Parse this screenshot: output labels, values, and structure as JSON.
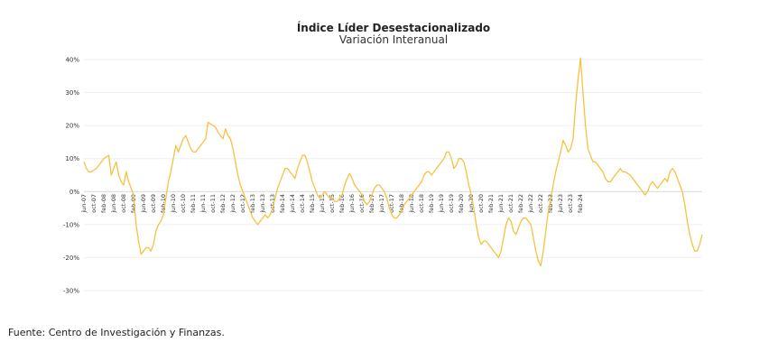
{
  "chart_data": {
    "type": "line",
    "title": "Índice Líder Desestacionalizado",
    "subtitle": "Variación Interanual",
    "xlabel": "",
    "ylabel": "",
    "ylim": [
      -30,
      40
    ],
    "yticks": [
      40,
      30,
      20,
      10,
      0,
      -10,
      -20,
      -30
    ],
    "ytick_labels": [
      "40%",
      "30%",
      "20%",
      "10%",
      "0%",
      "-10%",
      "-20%",
      "-30%"
    ],
    "grid": true,
    "x_start": "2007-06",
    "xtick_labels": [
      "jun-07",
      "oct-07",
      "feb-08",
      "jun-08",
      "oct-08",
      "feb-09",
      "jun-09",
      "oct-09",
      "feb-10",
      "jun-10",
      "oct-10",
      "feb-11",
      "jun-11",
      "oct-11",
      "feb-12",
      "jun-12",
      "oct-12",
      "feb-13",
      "jun-13",
      "oct-13",
      "feb-14",
      "jun-14",
      "oct-14",
      "feb-15",
      "jun-15",
      "oct-15",
      "feb-16",
      "jun-16",
      "oct-16",
      "feb-17",
      "jun-17",
      "oct-17",
      "feb-18",
      "jun-18",
      "oct-18",
      "feb-19",
      "jun-19",
      "oct-19",
      "feb-20",
      "jun-20",
      "oct-20",
      "feb-21",
      "jun-21",
      "oct-21",
      "feb-22",
      "jun-22",
      "oct-22",
      "feb-23",
      "jun-23",
      "oct-23",
      "feb-24"
    ],
    "series": [
      {
        "color": "#f5c242",
        "values": [
          9,
          7,
          6,
          6,
          6.5,
          7,
          8,
          9,
          10,
          10.5,
          11,
          5,
          7,
          9,
          5,
          3,
          2,
          6,
          3,
          1,
          -1,
          -10,
          -15,
          -19,
          -18,
          -17,
          -17,
          -18,
          -16,
          -12,
          -10,
          -9,
          -7,
          -2,
          3,
          6,
          10,
          14,
          12,
          14,
          16,
          17,
          15,
          13,
          12,
          12,
          13,
          14,
          15,
          16,
          21,
          20.5,
          20,
          19.5,
          18,
          17,
          16,
          19,
          17,
          16,
          13,
          9,
          5,
          2,
          0,
          -2,
          -4,
          -6,
          -8,
          -9,
          -10,
          -9,
          -8,
          -7,
          -8,
          -7,
          -5,
          -2,
          1,
          3,
          5,
          7,
          7,
          6,
          5,
          4,
          7,
          9,
          11,
          11,
          9,
          6,
          3,
          1,
          -1,
          -2,
          -1,
          0,
          -1,
          -2,
          -2,
          -3,
          -3,
          -2,
          -1,
          2,
          4,
          5.5,
          4,
          2,
          1,
          0,
          -1,
          -3,
          -4,
          -3,
          -1,
          1,
          2,
          2,
          1,
          0,
          -2,
          -5,
          -7,
          -8,
          -8,
          -7,
          -6,
          -4,
          -3,
          -2,
          -1,
          0,
          1,
          2,
          3,
          5,
          6,
          6,
          5,
          6,
          7,
          8,
          9,
          10,
          12,
          12,
          10,
          7,
          8,
          10,
          10,
          9,
          6,
          2,
          -1,
          -5,
          -10,
          -14,
          -16,
          -15,
          -15,
          -16,
          -17,
          -18,
          -19,
          -20,
          -18,
          -14,
          -10,
          -8,
          -9,
          -12,
          -13,
          -11,
          -9,
          -8,
          -8,
          -9,
          -10,
          -14,
          -18,
          -21,
          -22.5,
          -18,
          -12,
          -6,
          -2,
          2,
          6,
          9,
          12,
          15.5,
          14,
          12,
          13,
          16,
          26,
          34,
          40.5,
          30,
          20,
          13,
          11,
          9,
          9,
          8,
          7,
          6,
          4,
          3,
          3,
          4,
          5,
          6,
          7,
          6,
          6,
          5.5,
          5,
          4,
          3,
          2,
          1,
          0,
          -1,
          0,
          2,
          3,
          2,
          1,
          2,
          3,
          4,
          3,
          6,
          7,
          6,
          4,
          2,
          0,
          -4,
          -9,
          -13,
          -16,
          -18,
          -18,
          -16,
          -13
        ]
      }
    ]
  },
  "source_text": "Fuente: Centro de Investigación y Finanzas."
}
